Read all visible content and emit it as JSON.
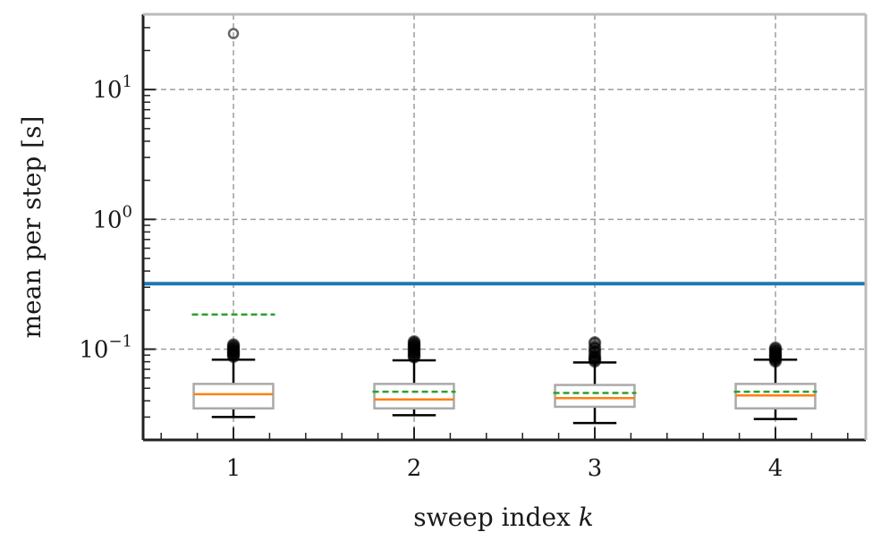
{
  "chart_data": {
    "type": "box",
    "xlabel": "sweep index k",
    "xlabel_parts": {
      "text": "sweep index ",
      "var": "k"
    },
    "ylabel": "mean per step [s]",
    "y_scale": "log",
    "ylim": [
      0.02,
      38
    ],
    "xlim": [
      0.5,
      4.5
    ],
    "grid": true,
    "categories": [
      "1",
      "2",
      "3",
      "4"
    ],
    "y_tick_labels": [
      {
        "value": 10,
        "base": "10",
        "exp": "1"
      },
      {
        "value": 1,
        "base": "10",
        "exp": "0"
      },
      {
        "value": 0.1,
        "base": "10",
        "exp": "−1"
      }
    ],
    "reference_line": {
      "y": 0.32,
      "color": "#1f77b4"
    },
    "boxes": [
      {
        "x": 1,
        "whisker_low": 0.03,
        "q1": 0.035,
        "median": 0.045,
        "q3": 0.054,
        "whisker_high": 0.083,
        "mean": 0.185,
        "outliers": [
          0.088,
          0.091,
          0.094,
          0.097,
          0.1,
          0.104,
          0.108,
          27.0
        ]
      },
      {
        "x": 2,
        "whisker_low": 0.031,
        "q1": 0.035,
        "median": 0.041,
        "q3": 0.054,
        "whisker_high": 0.082,
        "mean": 0.047,
        "outliers": [
          0.087,
          0.09,
          0.094,
          0.098,
          0.102,
          0.106,
          0.11,
          0.114
        ]
      },
      {
        "x": 3,
        "whisker_low": 0.027,
        "q1": 0.036,
        "median": 0.042,
        "q3": 0.053,
        "whisker_high": 0.079,
        "mean": 0.046,
        "outliers": [
          0.081,
          0.084,
          0.088,
          0.095,
          0.102,
          0.112
        ]
      },
      {
        "x": 4,
        "whisker_low": 0.029,
        "q1": 0.035,
        "median": 0.044,
        "q3": 0.054,
        "whisker_high": 0.083,
        "mean": 0.047,
        "outliers": [
          0.081,
          0.084,
          0.087,
          0.09,
          0.094,
          0.098,
          0.102
        ]
      }
    ],
    "colors": {
      "box": "#aaaaaa",
      "median": "#ff7f0e",
      "mean": "#2ca02c",
      "whisker": "#000000",
      "outlier": "#000000",
      "grid": "#9e9e9e",
      "axis": "#222222",
      "spine_light": "#bbbbbb"
    }
  }
}
